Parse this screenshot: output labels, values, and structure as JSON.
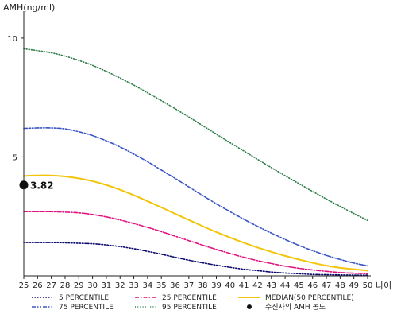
{
  "chart_data": {
    "type": "line",
    "title": "",
    "ylabel": "AMH(ng/ml)",
    "xlabel": "나이",
    "x": [
      25,
      26,
      27,
      28,
      29,
      30,
      31,
      32,
      33,
      34,
      35,
      36,
      37,
      38,
      39,
      40,
      41,
      42,
      43,
      44,
      45,
      46,
      47,
      48,
      49,
      50
    ],
    "xlim": [
      25,
      50
    ],
    "ylim": [
      0,
      11
    ],
    "yticks": [
      5,
      10
    ],
    "grid": false,
    "legend_position": "bottom",
    "series": [
      {
        "name": "5 PERCENTILE",
        "color": "#0a0a6e",
        "dash": "dotted",
        "values": [
          1.4,
          1.4,
          1.4,
          1.39,
          1.37,
          1.35,
          1.3,
          1.23,
          1.14,
          1.03,
          0.91,
          0.78,
          0.66,
          0.55,
          0.45,
          0.36,
          0.28,
          0.22,
          0.16,
          0.12,
          0.09,
          0.06,
          0.05,
          0.04,
          0.03,
          0.03
        ]
      },
      {
        "name": "25 PERCENTILE",
        "color": "#e0117f",
        "dash": "dashdot",
        "values": [
          2.7,
          2.7,
          2.7,
          2.68,
          2.65,
          2.58,
          2.48,
          2.35,
          2.2,
          2.04,
          1.86,
          1.67,
          1.48,
          1.29,
          1.11,
          0.94,
          0.78,
          0.64,
          0.52,
          0.41,
          0.32,
          0.25,
          0.19,
          0.14,
          0.11,
          0.09
        ]
      },
      {
        "name": "MEDIAN(50 PERCENTILE)",
        "color": "#f2c40a",
        "dash": "solid",
        "values": [
          4.2,
          4.22,
          4.22,
          4.18,
          4.1,
          3.98,
          3.82,
          3.62,
          3.39,
          3.14,
          2.88,
          2.61,
          2.35,
          2.09,
          1.84,
          1.61,
          1.39,
          1.19,
          1.01,
          0.84,
          0.69,
          0.55,
          0.43,
          0.34,
          0.28,
          0.22
        ]
      },
      {
        "name": "75 PERCENTILE",
        "color": "#3b55c4",
        "dash": "dashdotdot",
        "values": [
          6.2,
          6.22,
          6.22,
          6.18,
          6.06,
          5.9,
          5.68,
          5.42,
          5.12,
          4.8,
          4.45,
          4.1,
          3.74,
          3.38,
          3.03,
          2.7,
          2.38,
          2.08,
          1.8,
          1.53,
          1.28,
          1.06,
          0.86,
          0.69,
          0.54,
          0.42
        ]
      },
      {
        "name": "95 PERCENTILE",
        "color": "#2e7d4a",
        "dash": "densedot",
        "values": [
          9.55,
          9.47,
          9.38,
          9.24,
          9.06,
          8.85,
          8.6,
          8.32,
          8.02,
          7.7,
          7.37,
          7.03,
          6.68,
          6.32,
          5.96,
          5.6,
          5.25,
          4.9,
          4.55,
          4.21,
          3.88,
          3.55,
          3.23,
          2.92,
          2.62,
          2.33
        ]
      }
    ],
    "marker": {
      "name": "수진자의 AMH 농도",
      "x": 25,
      "y": 3.82,
      "label": "3.82",
      "color": "#111111"
    },
    "legend": [
      {
        "label": "5 PERCENTILE",
        "series": 0
      },
      {
        "label": "25 PERCENTILE",
        "series": 1
      },
      {
        "label": "MEDIAN(50 PERCENTILE)",
        "series": 2
      },
      {
        "label": "75 PERCENTILE",
        "series": 3
      },
      {
        "label": "95 PERCENTILE",
        "series": 4
      },
      {
        "label": "수진자의 AMH 농도",
        "marker": true
      }
    ]
  }
}
